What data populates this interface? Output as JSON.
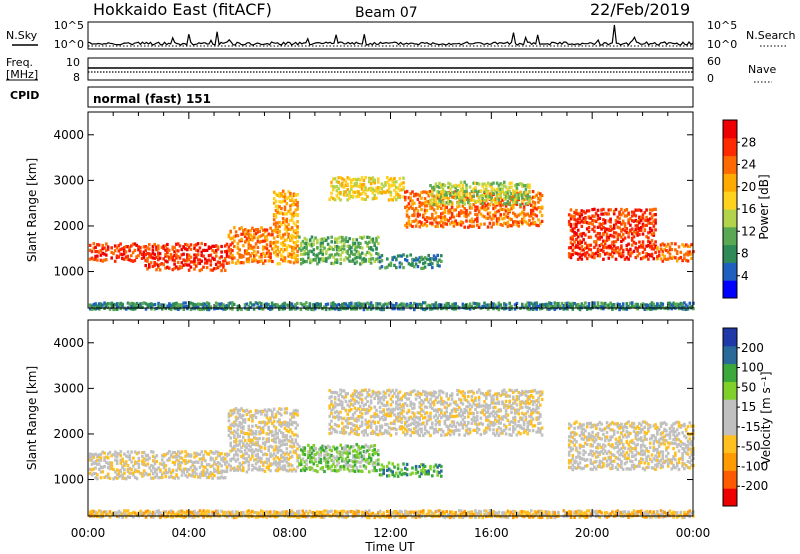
{
  "header": {
    "station": "Hokkaido East (fitACF)",
    "beam": "Beam 07",
    "date": "22/Feb/2019"
  },
  "left_labels": {
    "nsky": "N.Sky",
    "freq": "Freq.",
    "freq_unit": "[MHz]",
    "cpid": "CPID"
  },
  "right_labels": {
    "nsearch": "N.Search",
    "nave": "Nave"
  },
  "small_axes": {
    "noise_ticks": [
      "10^5",
      "10^0"
    ],
    "freq_ticks": [
      "10",
      "8"
    ],
    "nave_ticks": [
      "60",
      "0"
    ]
  },
  "cpid_text": "normal (fast) 151",
  "chart_data": [
    {
      "type": "heatmap",
      "panel": "power",
      "ylabel": "Slant Range [km]",
      "ylim": [
        200,
        4500
      ],
      "yticks": [
        "1000",
        "2000",
        "3000",
        "4000"
      ],
      "xlim": [
        0,
        24
      ],
      "colorbar_label": "Power [dB]",
      "colorbar_ticks": [
        "28",
        "24",
        "20",
        "16",
        "12",
        "8",
        "4"
      ],
      "colors": [
        "#0000ff",
        "#1f5fbf",
        "#2e8b57",
        "#5aa854",
        "#b3d44a",
        "#ffd21f",
        "#ffaa00",
        "#ff6a00",
        "#ff2a00",
        "#ee0000"
      ],
      "bands": [
        {
          "t0": 0.0,
          "t1": 2.2,
          "r0": 1250,
          "r1": 1650,
          "level": 8
        },
        {
          "t0": 2.2,
          "t1": 5.5,
          "r0": 1050,
          "r1": 1650,
          "level": 8
        },
        {
          "t0": 5.5,
          "t1": 7.3,
          "r0": 1200,
          "r1": 2000,
          "level": 7
        },
        {
          "t0": 7.3,
          "t1": 8.3,
          "r0": 1200,
          "r1": 2800,
          "level": 6
        },
        {
          "t0": 8.3,
          "t1": 11.5,
          "r0": 1200,
          "r1": 1800,
          "level": 3
        },
        {
          "t0": 11.5,
          "t1": 14.0,
          "r0": 1100,
          "r1": 1400,
          "level": 2
        },
        {
          "t0": 9.5,
          "t1": 12.5,
          "r0": 2600,
          "r1": 3100,
          "level": 5
        },
        {
          "t0": 12.5,
          "t1": 18.0,
          "r0": 2000,
          "r1": 2800,
          "level": 7
        },
        {
          "t0": 13.5,
          "t1": 17.5,
          "r0": 2500,
          "r1": 3000,
          "level": 4
        },
        {
          "t0": 19.0,
          "t1": 22.5,
          "r0": 1300,
          "r1": 2400,
          "level": 8
        },
        {
          "t0": 22.5,
          "t1": 24.0,
          "r0": 1250,
          "r1": 1650,
          "level": 7
        },
        {
          "t0": 0.0,
          "t1": 24.0,
          "r0": 200,
          "r1": 350,
          "level": 2
        }
      ]
    },
    {
      "type": "heatmap",
      "panel": "velocity",
      "ylabel": "Slant Range [km]",
      "ylim": [
        200,
        4500
      ],
      "yticks": [
        "1000",
        "2000",
        "3000",
        "4000"
      ],
      "xlim": [
        0,
        24
      ],
      "xticks": [
        "00:00",
        "04:00",
        "08:00",
        "12:00",
        "16:00",
        "20:00",
        "00:00"
      ],
      "xlabel": "Time UT",
      "colorbar_label": "Velocity [m s⁻¹]",
      "colorbar_ticks": [
        "200",
        "100",
        "50",
        "15",
        "-15",
        "-50",
        "-100",
        "-200"
      ],
      "colors": [
        "#ee0000",
        "#ff5a00",
        "#ff9a00",
        "#ffc020",
        "#c0c0c0",
        "#c0c0c0",
        "#7fd12a",
        "#3aa83a",
        "#2a6a9a",
        "#1f3aa8"
      ],
      "bands": [
        {
          "t0": 0.0,
          "t1": 5.5,
          "r0": 1050,
          "r1": 1650,
          "level": 4
        },
        {
          "t0": 5.5,
          "t1": 8.3,
          "r0": 1200,
          "r1": 2600,
          "level": 4
        },
        {
          "t0": 8.3,
          "t1": 11.5,
          "r0": 1200,
          "r1": 1800,
          "level": 6
        },
        {
          "t0": 11.5,
          "t1": 14.0,
          "r0": 1100,
          "r1": 1400,
          "level": 7
        },
        {
          "t0": 9.5,
          "t1": 18.0,
          "r0": 2000,
          "r1": 3000,
          "level": 4
        },
        {
          "t0": 19.0,
          "t1": 24.0,
          "r0": 1250,
          "r1": 2300,
          "level": 4
        },
        {
          "t0": 0.0,
          "t1": 24.0,
          "r0": 200,
          "r1": 350,
          "level": 3
        }
      ]
    }
  ]
}
